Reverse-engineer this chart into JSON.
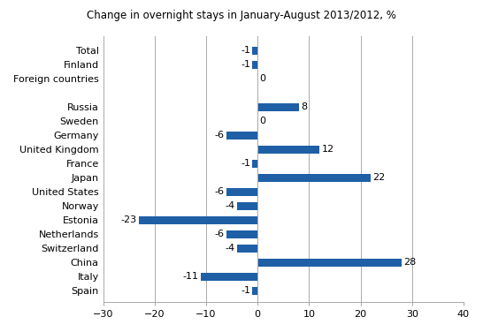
{
  "categories": [
    "Total",
    "Finland",
    "Foreign countries",
    "Russia",
    "Sweden",
    "Germany",
    "United Kingdom",
    "France",
    "Japan",
    "United States",
    "Norway",
    "Estonia",
    "Netherlands",
    "Switzerland",
    "China",
    "Italy",
    "Spain"
  ],
  "values": [
    -1,
    -1,
    0,
    8,
    0,
    -6,
    12,
    -1,
    22,
    -6,
    -4,
    -23,
    -6,
    -4,
    28,
    -11,
    -1
  ],
  "y_positions": [
    16,
    15,
    14,
    12,
    11,
    10,
    9,
    8,
    7,
    6,
    5,
    4,
    3,
    2,
    1,
    0,
    -1
  ],
  "bar_color": "#1f5fa6",
  "xlim": [
    -30,
    40
  ],
  "xticks": [
    -30,
    -20,
    -10,
    0,
    10,
    20,
    30,
    40
  ],
  "title": "Change in overnight stays in January-August 2013/2012, %",
  "title_fontsize": 8.5,
  "label_fontsize": 8,
  "tick_fontsize": 8,
  "bar_height": 0.55,
  "background_color": "#ffffff",
  "grid_color": "#aaaaaa"
}
